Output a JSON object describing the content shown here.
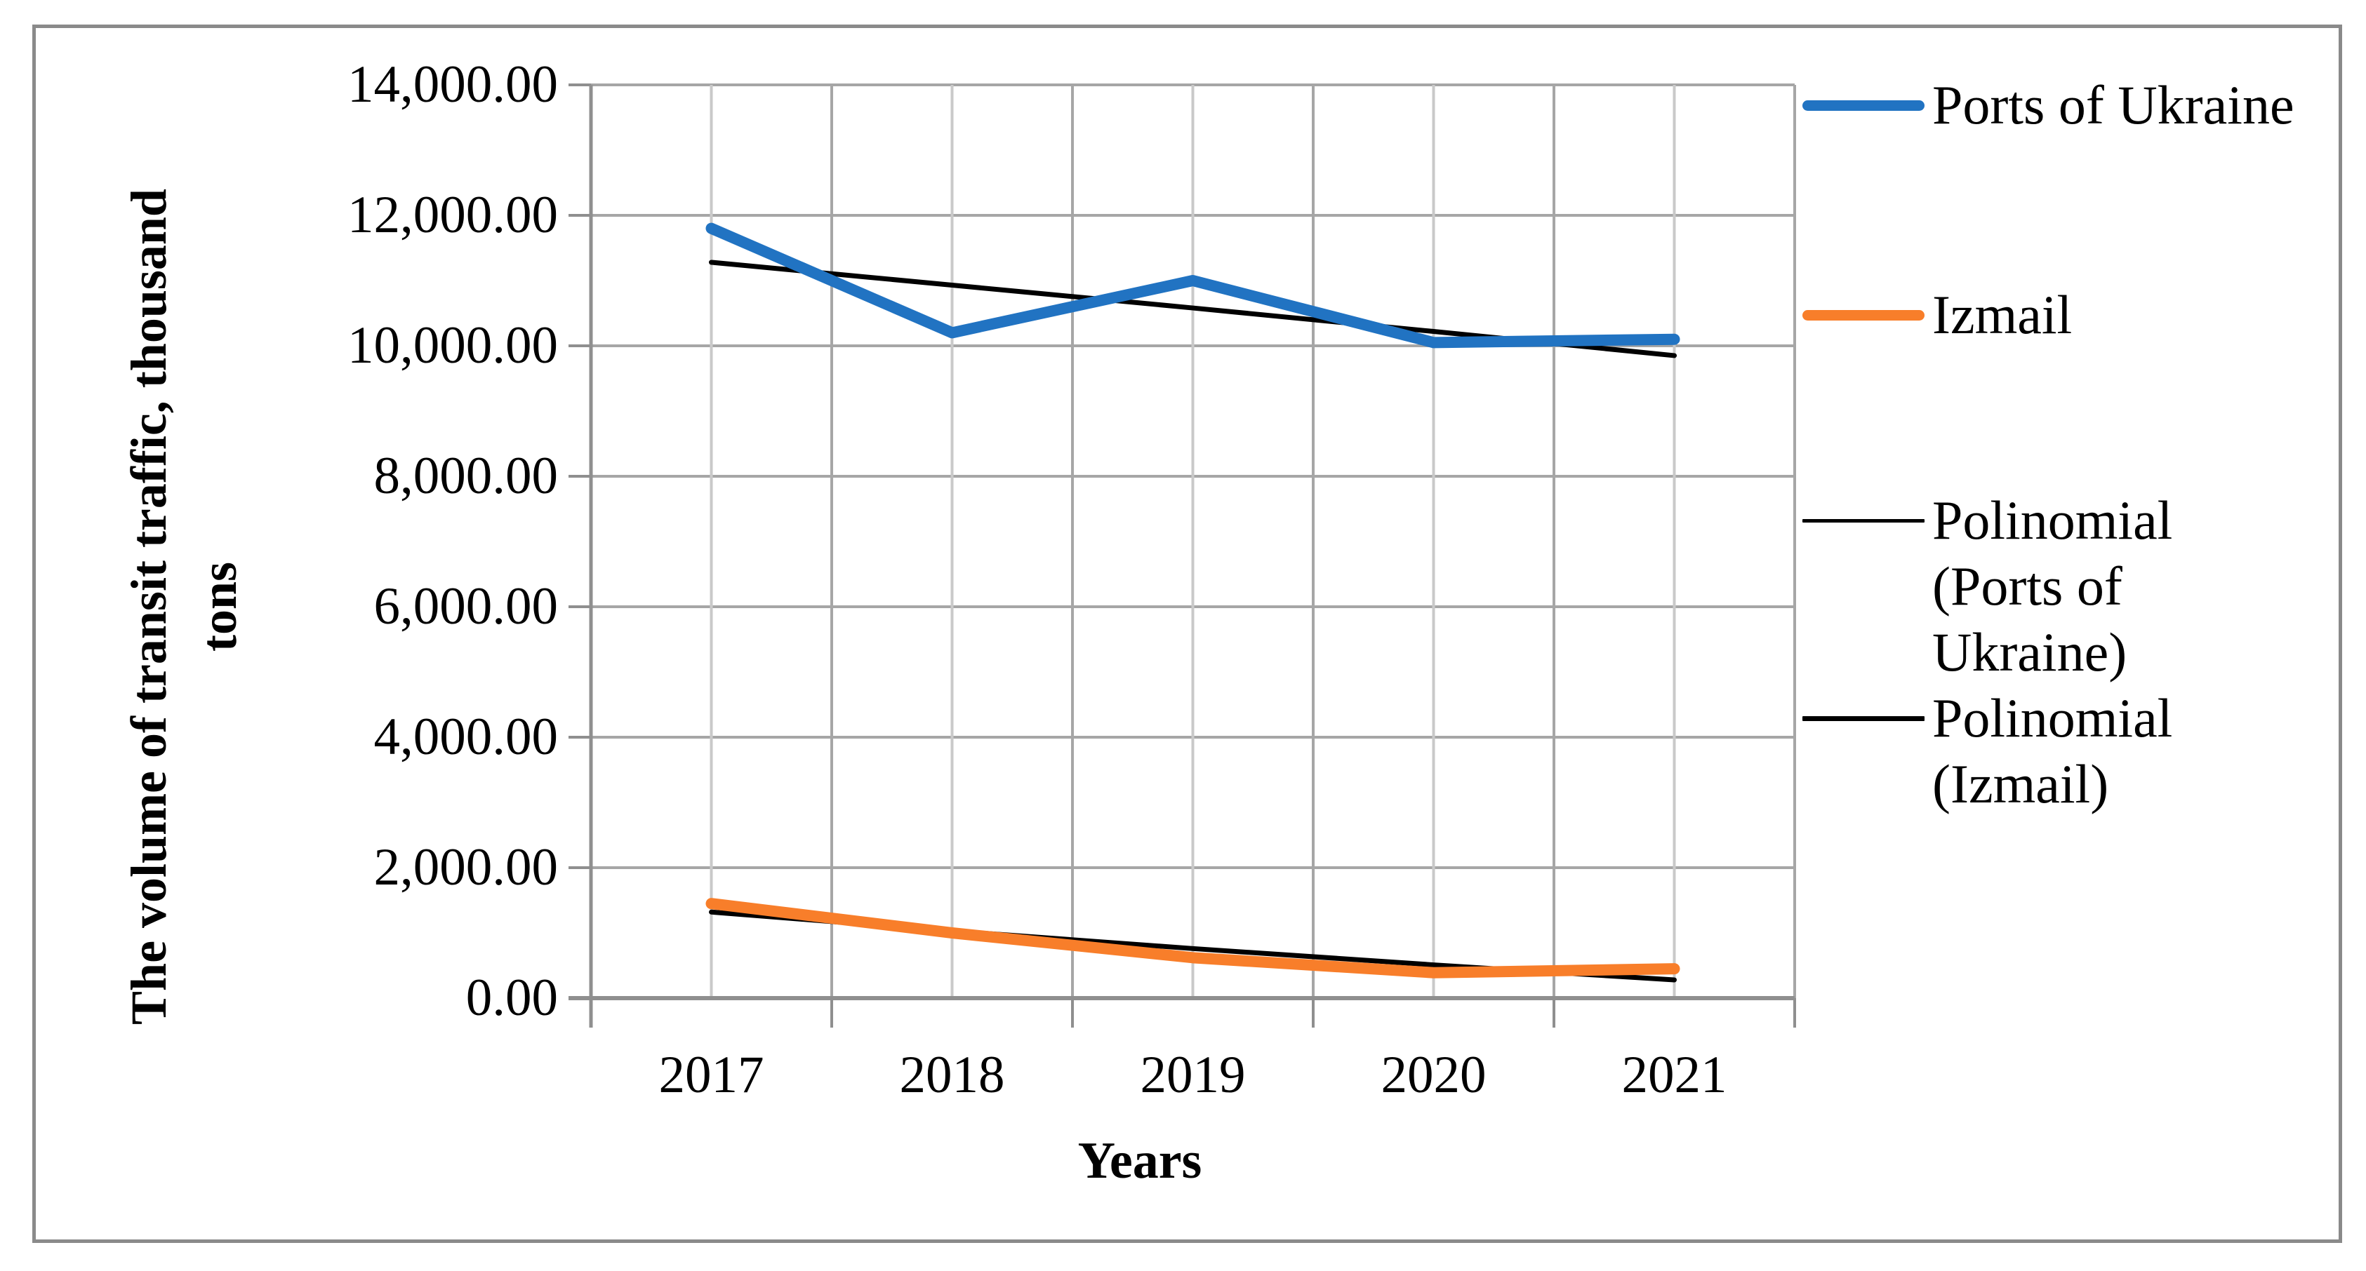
{
  "figure": {
    "background_color": "#FFFFFF",
    "border_color": "#8A8A8A"
  },
  "chart_data": {
    "type": "line",
    "title": "",
    "xlabel": "Years",
    "ylabel": "The volume of transit traffic, thousand tons",
    "ylabel_lines": [
      "The volume of transit traffic, thousand",
      "tons"
    ],
    "categories": [
      "2017",
      "2018",
      "2019",
      "2020",
      "2021"
    ],
    "ylim": [
      0,
      14000
    ],
    "y_tick_step": 2000,
    "y_tick_labels": [
      "0.00",
      "2,000.00",
      "4,000.00",
      "6,000.00",
      "8,000.00",
      "10,000.00",
      "12,000.00",
      "14,000.00"
    ],
    "grid": true,
    "legend_position": "right",
    "gridline_color": "#A6A6A6",
    "minor_gridline_color": "#C9C9C9",
    "axis_color": "#8F8F8F",
    "series": [
      {
        "name": "Ports of Ukraine",
        "kind": "data",
        "color": "#2173C2",
        "line_width": 16,
        "legend_lines": [
          "Ports of Ukraine"
        ],
        "values": [
          11800,
          10200,
          11000,
          10050,
          10100
        ]
      },
      {
        "name": "Izmail",
        "kind": "data",
        "color": "#F87E2A",
        "line_width": 16,
        "legend_lines": [
          "Izmail"
        ],
        "values": [
          1450,
          1000,
          620,
          390,
          450
        ]
      },
      {
        "name": "Polinomial (Ports of Ukraine)",
        "kind": "trend",
        "color": "#000000",
        "line_width": 7,
        "swatch_height": 5,
        "legend_lines": [
          "Polinomial",
          "(Ports of",
          "Ukraine)"
        ],
        "values": [
          11280,
          10930,
          10580,
          10220,
          9850
        ]
      },
      {
        "name": "Polinomial (Izmail)",
        "kind": "trend",
        "color": "#000000",
        "line_width": 7,
        "swatch_height": 7,
        "legend_lines": [
          "Polinomial",
          "(Izmail)"
        ],
        "values": [
          1320,
          1030,
          760,
          510,
          280
        ]
      }
    ]
  }
}
